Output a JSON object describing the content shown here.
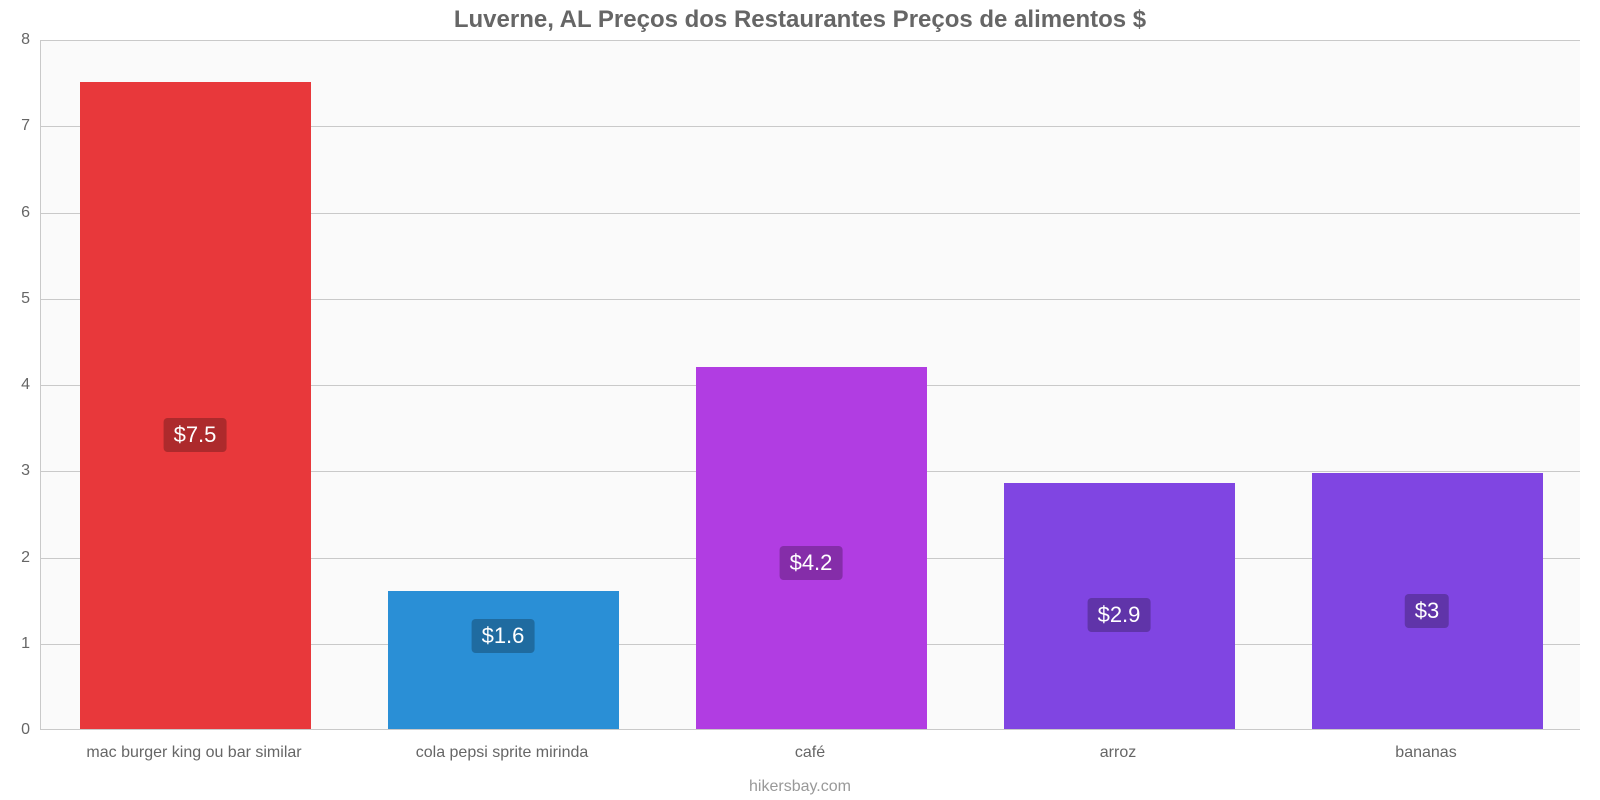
{
  "chart": {
    "type": "bar",
    "title": "Luverne, AL Preços dos Restaurantes Preços de alimentos $",
    "title_color": "#666666",
    "title_fontsize": 24,
    "title_fontweight": 700,
    "footer": "hikersbay.com",
    "footer_color": "#999999",
    "footer_fontsize": 16,
    "background_color": "#ffffff",
    "plot_background": "#fafafa",
    "gridline_color": "#c9c9c9",
    "axis_color": "#c9c9c9",
    "tick_label_color": "#666666",
    "tick_label_fontsize": 16,
    "ylim": [
      0,
      8
    ],
    "yticks": [
      0,
      1,
      2,
      3,
      4,
      5,
      6,
      7,
      8
    ],
    "bar_width_ratio": 0.75,
    "bars": [
      {
        "category": "mac burger king ou bar similar",
        "value": 7.5,
        "label": "$7.5",
        "color": "#e8383b",
        "label_bg": "#ad2a2c"
      },
      {
        "category": "cola pepsi sprite mirinda",
        "value": 1.6,
        "label": "$1.6",
        "color": "#2a8fd6",
        "label_bg": "#1f6ba0"
      },
      {
        "category": "café",
        "value": 4.2,
        "label": "$4.2",
        "color": "#b13de2",
        "label_bg": "#852da9"
      },
      {
        "category": "arroz",
        "value": 2.85,
        "label": "$2.9",
        "color": "#8045e2",
        "label_bg": "#6034a9"
      },
      {
        "category": "bananas",
        "value": 2.97,
        "label": "$3",
        "color": "#8045e2",
        "label_bg": "#6034a9"
      }
    ],
    "value_label_fontsize": 22,
    "value_label_color": "#ffffff"
  }
}
